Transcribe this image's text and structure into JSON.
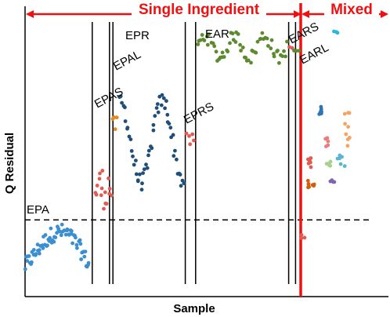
{
  "chart_data": {
    "type": "scatter",
    "title": "",
    "xlabel": "Sample",
    "ylabel": "Q Residual",
    "xlim": [
      0,
      100
    ],
    "ylim": [
      0,
      100
    ],
    "grid": false,
    "legend": "none",
    "threshold_y": 26,
    "regions": [
      {
        "label": "Single Ingredient",
        "x_start": 0,
        "x_end": 77
      },
      {
        "label": "Mixed",
        "x_start": 79,
        "x_end": 100
      }
    ],
    "group_boundaries_x": [
      19.5,
      24.5,
      25.5,
      46.5,
      49.5,
      76.5,
      78.5
    ],
    "mixed_boundary_x": 80,
    "groups": [
      {
        "label": "EPA",
        "color": "#3b8ed0",
        "x_range": [
          0,
          18.5
        ],
        "y_range": [
          8,
          27
        ],
        "count": 70
      },
      {
        "label": "EPAS",
        "color": "#e25a52",
        "x_range": [
          20.5,
          25
        ],
        "y_range": [
          30,
          46
        ],
        "count": 16
      },
      {
        "label": "EPAL",
        "color": "#e8891f",
        "x_range": [
          25.6,
          26.6
        ],
        "y_range": [
          58,
          64
        ],
        "count": 4
      },
      {
        "label": "EPR",
        "color": "#1f4e79",
        "x_range": [
          27.5,
          46
        ],
        "y_range": [
          37,
          72
        ],
        "count": 55
      },
      {
        "label": "EPRS",
        "color": "#e25a52",
        "x_range": [
          47,
          49
        ],
        "y_range": [
          53,
          58
        ],
        "count": 5
      },
      {
        "label": "EAR",
        "color": "#5c8a2e",
        "x_range": [
          50,
          76
        ],
        "y_range": [
          85,
          96
        ],
        "count": 60
      },
      {
        "label": "EARS",
        "color": "#e25a52",
        "x_range": [
          76.6,
          77.6
        ],
        "y_range": [
          89,
          90
        ],
        "count": 2
      },
      {
        "label": "EARL",
        "color": "#5c8a2e",
        "x_range": [
          78.2,
          79.4
        ],
        "y_range": [
          88,
          89
        ],
        "count": 3
      }
    ],
    "mixed_series": [
      {
        "color": "#e25a52",
        "x_range": [
          79.6,
          81.2
        ],
        "y_range": [
          18,
          21
        ],
        "count": 3
      },
      {
        "color": "#e25a52",
        "x_range": [
          82,
          83
        ],
        "y_range": [
          45,
          49
        ],
        "count": 6
      },
      {
        "color": "#d25e0e",
        "x_range": [
          81.8,
          84
        ],
        "y_range": [
          38,
          41
        ],
        "count": 8
      },
      {
        "color": "#2e75b6",
        "x_range": [
          84.5,
          86.5
        ],
        "y_range": [
          65,
          68
        ],
        "count": 7
      },
      {
        "color": "#ed7d7d",
        "x_range": [
          86.5,
          88
        ],
        "y_range": [
          53,
          57
        ],
        "count": 5
      },
      {
        "color": "#a9d18e",
        "x_range": [
          87.5,
          89.5
        ],
        "y_range": [
          46,
          48
        ],
        "count": 5
      },
      {
        "color": "#7f65b0",
        "x_range": [
          88.5,
          90
        ],
        "y_range": [
          40,
          42
        ],
        "count": 4
      },
      {
        "color": "#5ab7cf",
        "x_range": [
          90.5,
          93
        ],
        "y_range": [
          44,
          50
        ],
        "count": 7
      },
      {
        "color": "#f4a460",
        "x_range": [
          92.5,
          94.5
        ],
        "y_range": [
          53,
          68
        ],
        "count": 9
      },
      {
        "color": "#2bb7d9",
        "x_range": [
          89.5,
          91
        ],
        "y_range": [
          95,
          96
        ],
        "count": 3
      }
    ]
  }
}
